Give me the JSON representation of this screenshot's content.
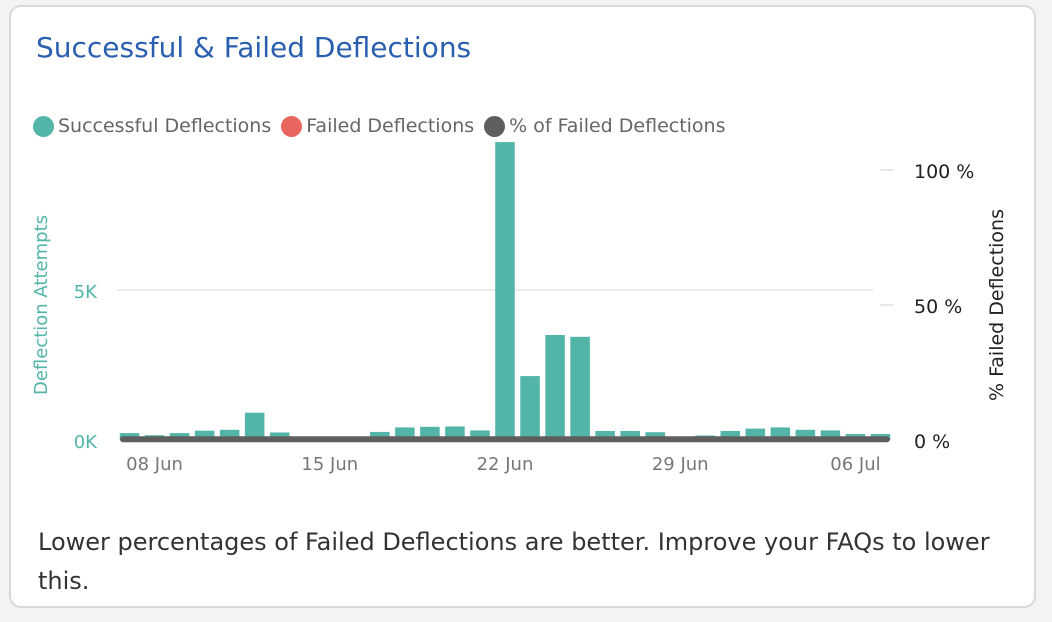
{
  "card": {
    "title": "Successful & Failed Deflections",
    "caption": "Lower percentages of Failed Deflections are better. Improve your FAQs to lower this."
  },
  "colors": {
    "successful": "#52b5a8",
    "failed": "#e8665e",
    "percent_failed": "#5e5e5e",
    "title": "#2a5fb0"
  },
  "chart_data": {
    "type": "bar",
    "legend": [
      {
        "name": "Successful Deflections",
        "color": "#52b5a8"
      },
      {
        "name": "Failed Deflections",
        "color": "#e8665e"
      },
      {
        "name": "% of Failed Deflections",
        "color": "#5e5e5e"
      }
    ],
    "legend_position": "top-left",
    "ylabel_left": "Deflection Attempts",
    "ylabel_right": "% Failed Deflections",
    "y_left_ticks": [
      {
        "value": 0,
        "label": "0K"
      },
      {
        "value": 5000,
        "label": "5K"
      }
    ],
    "y_left_range": [
      0,
      10000
    ],
    "y_right_ticks": [
      {
        "value": 0,
        "label": "0 %"
      },
      {
        "value": 50,
        "label": "50 %"
      },
      {
        "value": 100,
        "label": "100 %"
      }
    ],
    "y_right_range": [
      0,
      100
    ],
    "x_ticks": [
      {
        "date": "2020-06-08",
        "label": "08 Jun"
      },
      {
        "date": "2020-06-15",
        "label": "15 Jun"
      },
      {
        "date": "2020-06-22",
        "label": "22 Jun"
      },
      {
        "date": "2020-06-29",
        "label": "29 Jun"
      },
      {
        "date": "2020-07-06",
        "label": "06 Jul"
      }
    ],
    "x_range": [
      "2020-06-07",
      "2020-07-07"
    ],
    "series": [
      {
        "name": "Successful Deflections",
        "kind": "bar",
        "points": [
          {
            "date": "2020-06-07",
            "value": 230
          },
          {
            "date": "2020-06-08",
            "value": 160
          },
          {
            "date": "2020-06-09",
            "value": 230
          },
          {
            "date": "2020-06-10",
            "value": 310
          },
          {
            "date": "2020-06-11",
            "value": 340
          },
          {
            "date": "2020-06-12",
            "value": 910
          },
          {
            "date": "2020-06-13",
            "value": 250
          },
          {
            "date": "2020-06-14",
            "value": 100
          },
          {
            "date": "2020-06-15",
            "value": 80
          },
          {
            "date": "2020-06-16",
            "value": 90
          },
          {
            "date": "2020-06-17",
            "value": 270
          },
          {
            "date": "2020-06-18",
            "value": 420
          },
          {
            "date": "2020-06-19",
            "value": 440
          },
          {
            "date": "2020-06-20",
            "value": 450
          },
          {
            "date": "2020-06-21",
            "value": 320
          },
          {
            "date": "2020-06-22",
            "value": 9930
          },
          {
            "date": "2020-06-23",
            "value": 2130
          },
          {
            "date": "2020-06-24",
            "value": 3500
          },
          {
            "date": "2020-06-25",
            "value": 3440
          },
          {
            "date": "2020-06-26",
            "value": 300
          },
          {
            "date": "2020-06-27",
            "value": 300
          },
          {
            "date": "2020-06-28",
            "value": 260
          },
          {
            "date": "2020-06-29",
            "value": 80
          },
          {
            "date": "2020-06-30",
            "value": 150
          },
          {
            "date": "2020-07-01",
            "value": 300
          },
          {
            "date": "2020-07-02",
            "value": 380
          },
          {
            "date": "2020-07-03",
            "value": 420
          },
          {
            "date": "2020-07-04",
            "value": 340
          },
          {
            "date": "2020-07-05",
            "value": 320
          },
          {
            "date": "2020-07-06",
            "value": 200
          },
          {
            "date": "2020-07-07",
            "value": 200
          }
        ]
      },
      {
        "name": "% of Failed Deflections",
        "kind": "line",
        "axis": "right",
        "points": [
          {
            "date": "2020-06-07",
            "value": 1
          },
          {
            "date": "2020-07-07",
            "value": 1
          }
        ]
      }
    ]
  }
}
